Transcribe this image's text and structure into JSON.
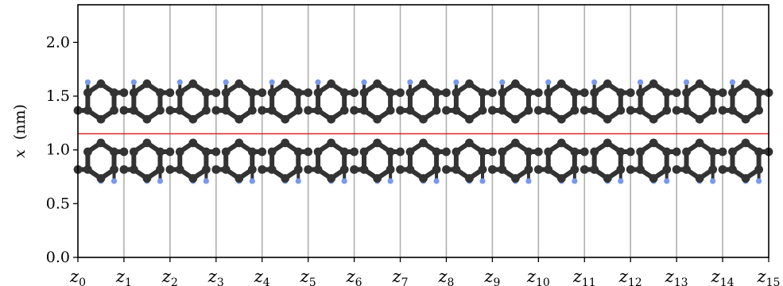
{
  "chart_data": {
    "type": "scatter",
    "description_free": true,
    "ylabel_var": "x",
    "ylabel_unit": "(nm)",
    "ylim": [
      0.0,
      2.35
    ],
    "yticks": [
      {
        "value": 0.0,
        "label": "0.0"
      },
      {
        "value": 0.5,
        "label": "0.5"
      },
      {
        "value": 1.0,
        "label": "1.0"
      },
      {
        "value": 1.5,
        "label": "1.5"
      },
      {
        "value": 2.0,
        "label": "2.0"
      }
    ],
    "xlim": [
      0,
      15
    ],
    "xticks": [
      {
        "value": 0,
        "var": "z",
        "sub": "0"
      },
      {
        "value": 1,
        "var": "z",
        "sub": "1"
      },
      {
        "value": 2,
        "var": "z",
        "sub": "2"
      },
      {
        "value": 3,
        "var": "z",
        "sub": "3"
      },
      {
        "value": 4,
        "var": "z",
        "sub": "4"
      },
      {
        "value": 5,
        "var": "z",
        "sub": "5"
      },
      {
        "value": 6,
        "var": "z",
        "sub": "6"
      },
      {
        "value": 7,
        "var": "z",
        "sub": "7"
      },
      {
        "value": 8,
        "var": "z",
        "sub": "8"
      },
      {
        "value": 9,
        "var": "z",
        "sub": "9"
      },
      {
        "value": 10,
        "var": "z",
        "sub": "10"
      },
      {
        "value": 11,
        "var": "z",
        "sub": "11"
      },
      {
        "value": 12,
        "var": "z",
        "sub": "12"
      },
      {
        "value": 13,
        "var": "z",
        "sub": "13"
      },
      {
        "value": 14,
        "var": "z",
        "sub": "14"
      },
      {
        "value": 15,
        "var": "z",
        "sub": "15"
      }
    ],
    "vertical_gridlines_at": [
      1,
      2,
      3,
      4,
      5,
      6,
      7,
      8,
      9,
      10,
      11,
      12,
      13,
      14
    ],
    "reference_line": {
      "y": 1.15,
      "color": "#d62728"
    },
    "unit_cells": 15,
    "carbon_color": "#333333",
    "hydrogen_color": "#7799ee",
    "gridline_color": "#b0b0b0"
  }
}
